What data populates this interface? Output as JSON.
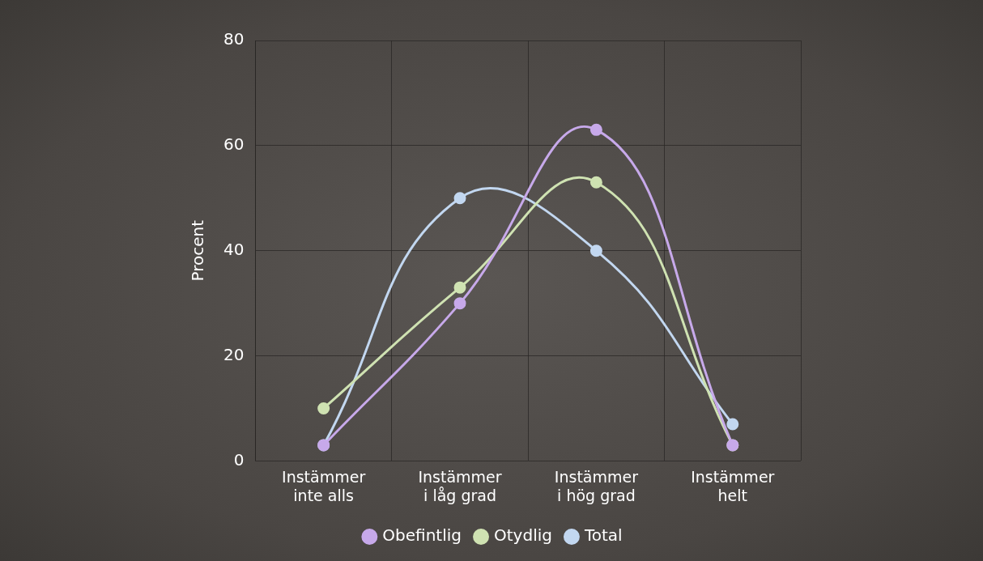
{
  "chart_data": {
    "type": "line",
    "y_label": "Procent",
    "categories": [
      "Instämmer inte alls",
      "Instämmer i låg grad",
      "Instämmer i hög grad",
      "Instämmer helt"
    ],
    "series": [
      {
        "name": "Obefintlig",
        "color": "#c7a9ea",
        "values": [
          3,
          30,
          63,
          3
        ]
      },
      {
        "name": "Otydlig",
        "color": "#cfe2b2",
        "values": [
          10,
          33,
          53,
          3
        ]
      },
      {
        "name": "Total",
        "color": "#c2d7f0",
        "values": [
          3,
          50,
          40,
          7
        ]
      }
    ],
    "ylim": [
      0,
      80
    ],
    "yticks": [
      0,
      20,
      40,
      60,
      80
    ],
    "grid": true,
    "legend": "bottom",
    "marker": "circle",
    "line_style": "solid"
  }
}
